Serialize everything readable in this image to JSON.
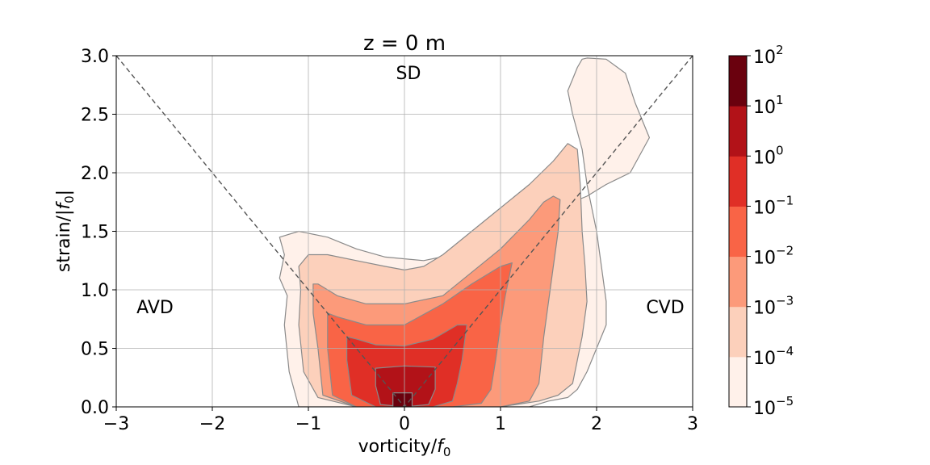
{
  "chart_data": {
    "type": "heatmap",
    "title": "z = 0 m",
    "xlabel": "vorticity/",
    "xlabel_sym": "f",
    "xlabel_sub": "0",
    "ylabel": "strain/|",
    "ylabel_sym": "f",
    "ylabel_sub": "0",
    "ylabel_end": "|",
    "xlim": [
      -3,
      3
    ],
    "ylim": [
      0,
      3
    ],
    "x_ticks": [
      -3,
      -2,
      -1,
      0,
      1,
      2,
      3
    ],
    "x_tick_labels": [
      "−3",
      "−2",
      "−1",
      "0",
      "1",
      "2",
      "3"
    ],
    "y_ticks": [
      0,
      0.5,
      1,
      1.5,
      2,
      2.5,
      3
    ],
    "y_tick_labels": [
      "0.0",
      "0.5",
      "1.0",
      "1.5",
      "2.0",
      "2.5",
      "3.0"
    ],
    "grid": true,
    "region_labels": [
      {
        "text": "SD",
        "x": 0.05,
        "y": 2.8
      },
      {
        "text": "AVD",
        "x": -2.6,
        "y": 0.85
      },
      {
        "text": "CVD",
        "x": 2.7,
        "y": 0.85
      }
    ],
    "reference_lines": [
      {
        "points": [
          [
            -3,
            3
          ],
          [
            0,
            0
          ],
          [
            3,
            3
          ]
        ],
        "style": "dashed"
      }
    ],
    "colorbar": {
      "scale": "log",
      "levels_exponents": [
        -5,
        -4,
        -3,
        -2,
        -1,
        0,
        1,
        2
      ],
      "base": "10",
      "colors": [
        "#fff1ea",
        "#fcd0bb",
        "#fc9a7a",
        "#f96446",
        "#e02f26",
        "#b21218",
        "#6a010e"
      ]
    },
    "contour_regions": [
      {
        "level": "1e-5",
        "x": [
          -1.3,
          -1.25,
          -1.3,
          -1.22,
          -1.25,
          -1.2,
          -1.1,
          -0.8,
          -0.5,
          0,
          0.4,
          0.8,
          1.1,
          1.3,
          1.5,
          1.7,
          1.8,
          1.9,
          2.0,
          2.1,
          2.1,
          2.05,
          2.0,
          1.9,
          1.85,
          1.75,
          1.7,
          1.75,
          1.8,
          1.85,
          1.9,
          2.1,
          2.3,
          2.4,
          2.55,
          2.35,
          2.1,
          1.9,
          1.75,
          1.3,
          0.8,
          0.5,
          0.2,
          -0.2,
          -0.5,
          -0.8,
          -1.1,
          -1.3
        ],
        "y": [
          1.45,
          1.3,
          1.1,
          0.95,
          0.7,
          0.3,
          0,
          0,
          0,
          0,
          0,
          0,
          0,
          0,
          0.05,
          0.08,
          0.15,
          0.3,
          0.5,
          0.7,
          0.9,
          1.2,
          1.5,
          1.9,
          2.2,
          2.5,
          2.7,
          2.8,
          2.9,
          2.97,
          2.98,
          2.97,
          2.85,
          2.6,
          2.3,
          2.0,
          1.9,
          1.8,
          1.75,
          1.55,
          1.35,
          1.3,
          1.25,
          1.28,
          1.35,
          1.45,
          1.5,
          1.45
        ]
      },
      {
        "level": "1e-4",
        "x": [
          -1.1,
          -1.08,
          -1.1,
          -1.05,
          -0.9,
          -0.5,
          0,
          0.5,
          1.0,
          1.4,
          1.6,
          1.75,
          1.8,
          1.85,
          1.9,
          1.88,
          1.85,
          1.83,
          1.8,
          1.7,
          1.55,
          1.3,
          1.0,
          0.7,
          0.4,
          0.2,
          0,
          -0.2,
          -0.5,
          -0.8,
          -1.0,
          -1.1
        ],
        "y": [
          1.2,
          1.0,
          0.7,
          0.3,
          0.08,
          0,
          0,
          0,
          0,
          0.05,
          0.1,
          0.2,
          0.4,
          0.6,
          0.9,
          1.2,
          1.5,
          1.9,
          2.2,
          2.25,
          2.1,
          1.9,
          1.7,
          1.5,
          1.3,
          1.2,
          1.17,
          1.2,
          1.25,
          1.3,
          1.3,
          1.2
        ]
      },
      {
        "level": "1e-3",
        "x": [
          -0.95,
          -0.95,
          -0.9,
          -0.85,
          -0.5,
          0,
          0.5,
          1.0,
          1.3,
          1.4,
          1.45,
          1.5,
          1.55,
          1.6,
          1.62,
          1.55,
          1.45,
          1.3,
          1.0,
          0.7,
          0.4,
          0,
          -0.4,
          -0.7,
          -0.9,
          -0.95
        ],
        "y": [
          1.05,
          0.8,
          0.5,
          0.1,
          0,
          0,
          0,
          0,
          0.05,
          0.2,
          0.6,
          0.9,
          1.2,
          1.5,
          1.77,
          1.8,
          1.75,
          1.6,
          1.35,
          1.15,
          0.95,
          0.88,
          0.88,
          0.95,
          1.05,
          1.05
        ]
      },
      {
        "level": "1e-2",
        "x": [
          -0.8,
          -0.8,
          -0.75,
          -0.5,
          0,
          0.5,
          0.8,
          0.9,
          0.95,
          1.0,
          1.05,
          1.1,
          1.12,
          1.0,
          0.7,
          0.4,
          0,
          -0.4,
          -0.7,
          -0.8
        ],
        "y": [
          0.8,
          0.5,
          0.1,
          0,
          0,
          0,
          0.03,
          0.15,
          0.4,
          0.7,
          0.95,
          1.15,
          1.23,
          1.2,
          1.05,
          0.88,
          0.7,
          0.7,
          0.77,
          0.8
        ]
      },
      {
        "level": "1e-1",
        "x": [
          -0.6,
          -0.6,
          -0.55,
          -0.3,
          0,
          0.3,
          0.5,
          0.55,
          0.6,
          0.65,
          0.55,
          0.3,
          0,
          -0.3,
          -0.5,
          -0.6
        ],
        "y": [
          0.6,
          0.4,
          0.1,
          0,
          0,
          0,
          0.05,
          0.2,
          0.4,
          0.7,
          0.7,
          0.58,
          0.52,
          0.53,
          0.58,
          0.6
        ]
      },
      {
        "level": "1e0",
        "x": [
          -0.3,
          -0.3,
          -0.25,
          0,
          0.25,
          0.32,
          0.32,
          0,
          -0.3
        ],
        "y": [
          0.33,
          0.18,
          0.02,
          0,
          0.02,
          0.15,
          0.34,
          0.35,
          0.33
        ]
      },
      {
        "level": "1e1",
        "x": [
          -0.12,
          -0.12,
          0.08,
          0.08,
          -0.12
        ],
        "y": [
          0.12,
          0,
          0,
          0.12,
          0.12
        ]
      }
    ]
  }
}
